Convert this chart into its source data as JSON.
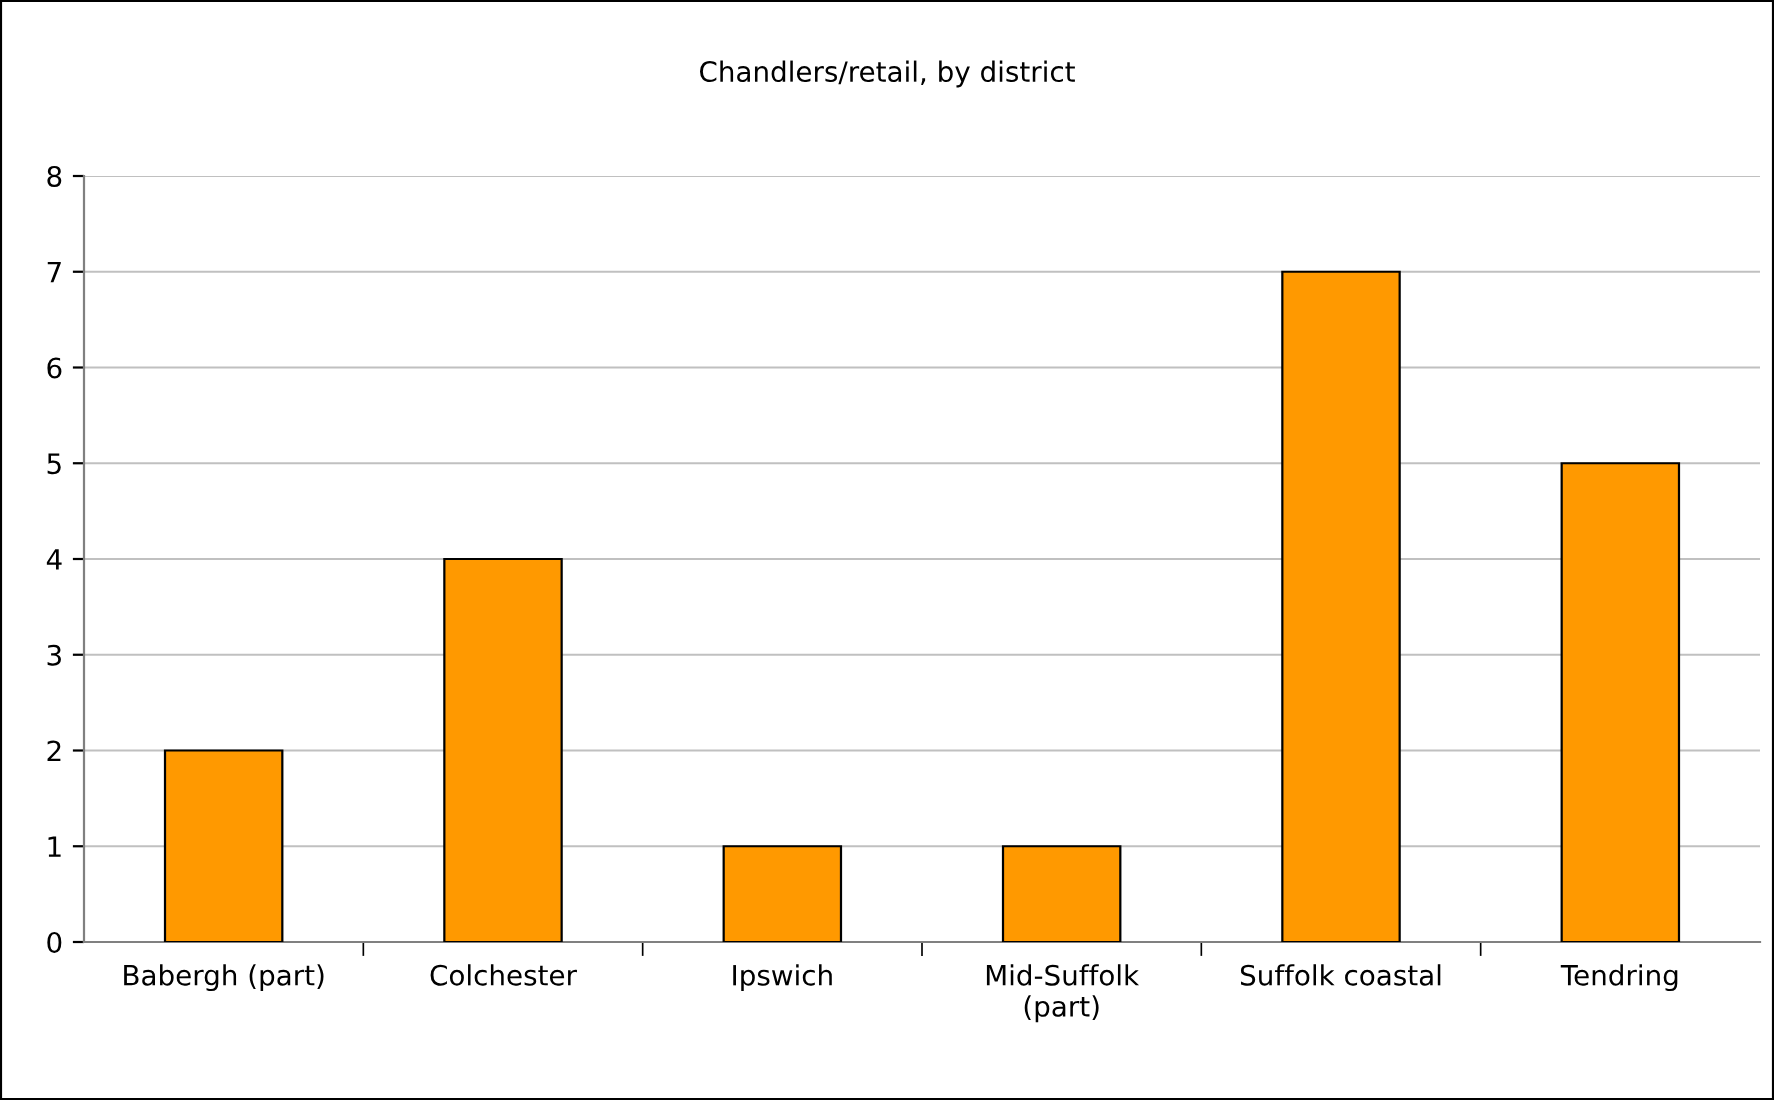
{
  "chart_data": {
    "type": "bar",
    "title": "Chandlers/retail, by district",
    "categories": [
      "Babergh (part)",
      "Colchester",
      "Ipswich",
      "Mid-Suffolk\n(part)",
      "Suffolk coastal",
      "Tendring"
    ],
    "values": [
      2,
      4,
      1,
      1,
      7,
      5
    ],
    "color": "#ff9900",
    "ylim": [
      0,
      8
    ],
    "yticks": [
      0,
      1,
      2,
      3,
      4,
      5,
      6,
      7,
      8
    ],
    "grid": "y",
    "legend": false
  }
}
